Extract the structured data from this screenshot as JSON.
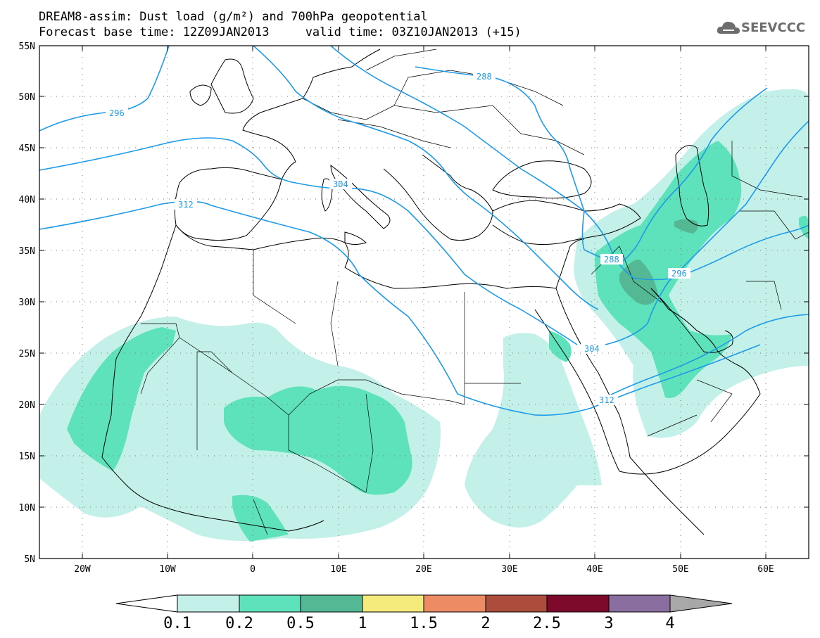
{
  "title": {
    "line1": "DREAM8-assim: Dust load (g/m²) and 700hPa geopotential",
    "line2": "Forecast base time: 12Z09JAN2013     valid time: 03Z10JAN2013 (+15)"
  },
  "logo": {
    "text": "SEEVCCC",
    "icon": "cloud-icon"
  },
  "map": {
    "lat_labels": [
      "55N",
      "50N",
      "45N",
      "40N",
      "35N",
      "30N",
      "25N",
      "20N",
      "15N",
      "10N",
      "5N"
    ],
    "lon_labels": [
      "20W",
      "10W",
      "0",
      "10E",
      "20E",
      "30E",
      "40E",
      "50E",
      "60E"
    ],
    "contour_labels": [
      "288",
      "296",
      "304",
      "312",
      "288",
      "296",
      "304",
      "312"
    ]
  },
  "colorbar": {
    "labels": [
      "0.1",
      "0.2",
      "0.5",
      "1",
      "1.5",
      "2",
      "2.5",
      "3",
      "4"
    ],
    "colors": [
      "#ffffff",
      "#c3f1ea",
      "#5ee2bb",
      "#55b894",
      "#f4eb7c",
      "#ec8b64",
      "#ab4c3d",
      "#7d0a2a",
      "#8b6ea0",
      "#a8a8a8"
    ]
  },
  "colors": {
    "contour": "#1e9be8",
    "dust_01": "#c3f1ea",
    "dust_02": "#5ee2bb",
    "dust_05": "#55b894"
  }
}
